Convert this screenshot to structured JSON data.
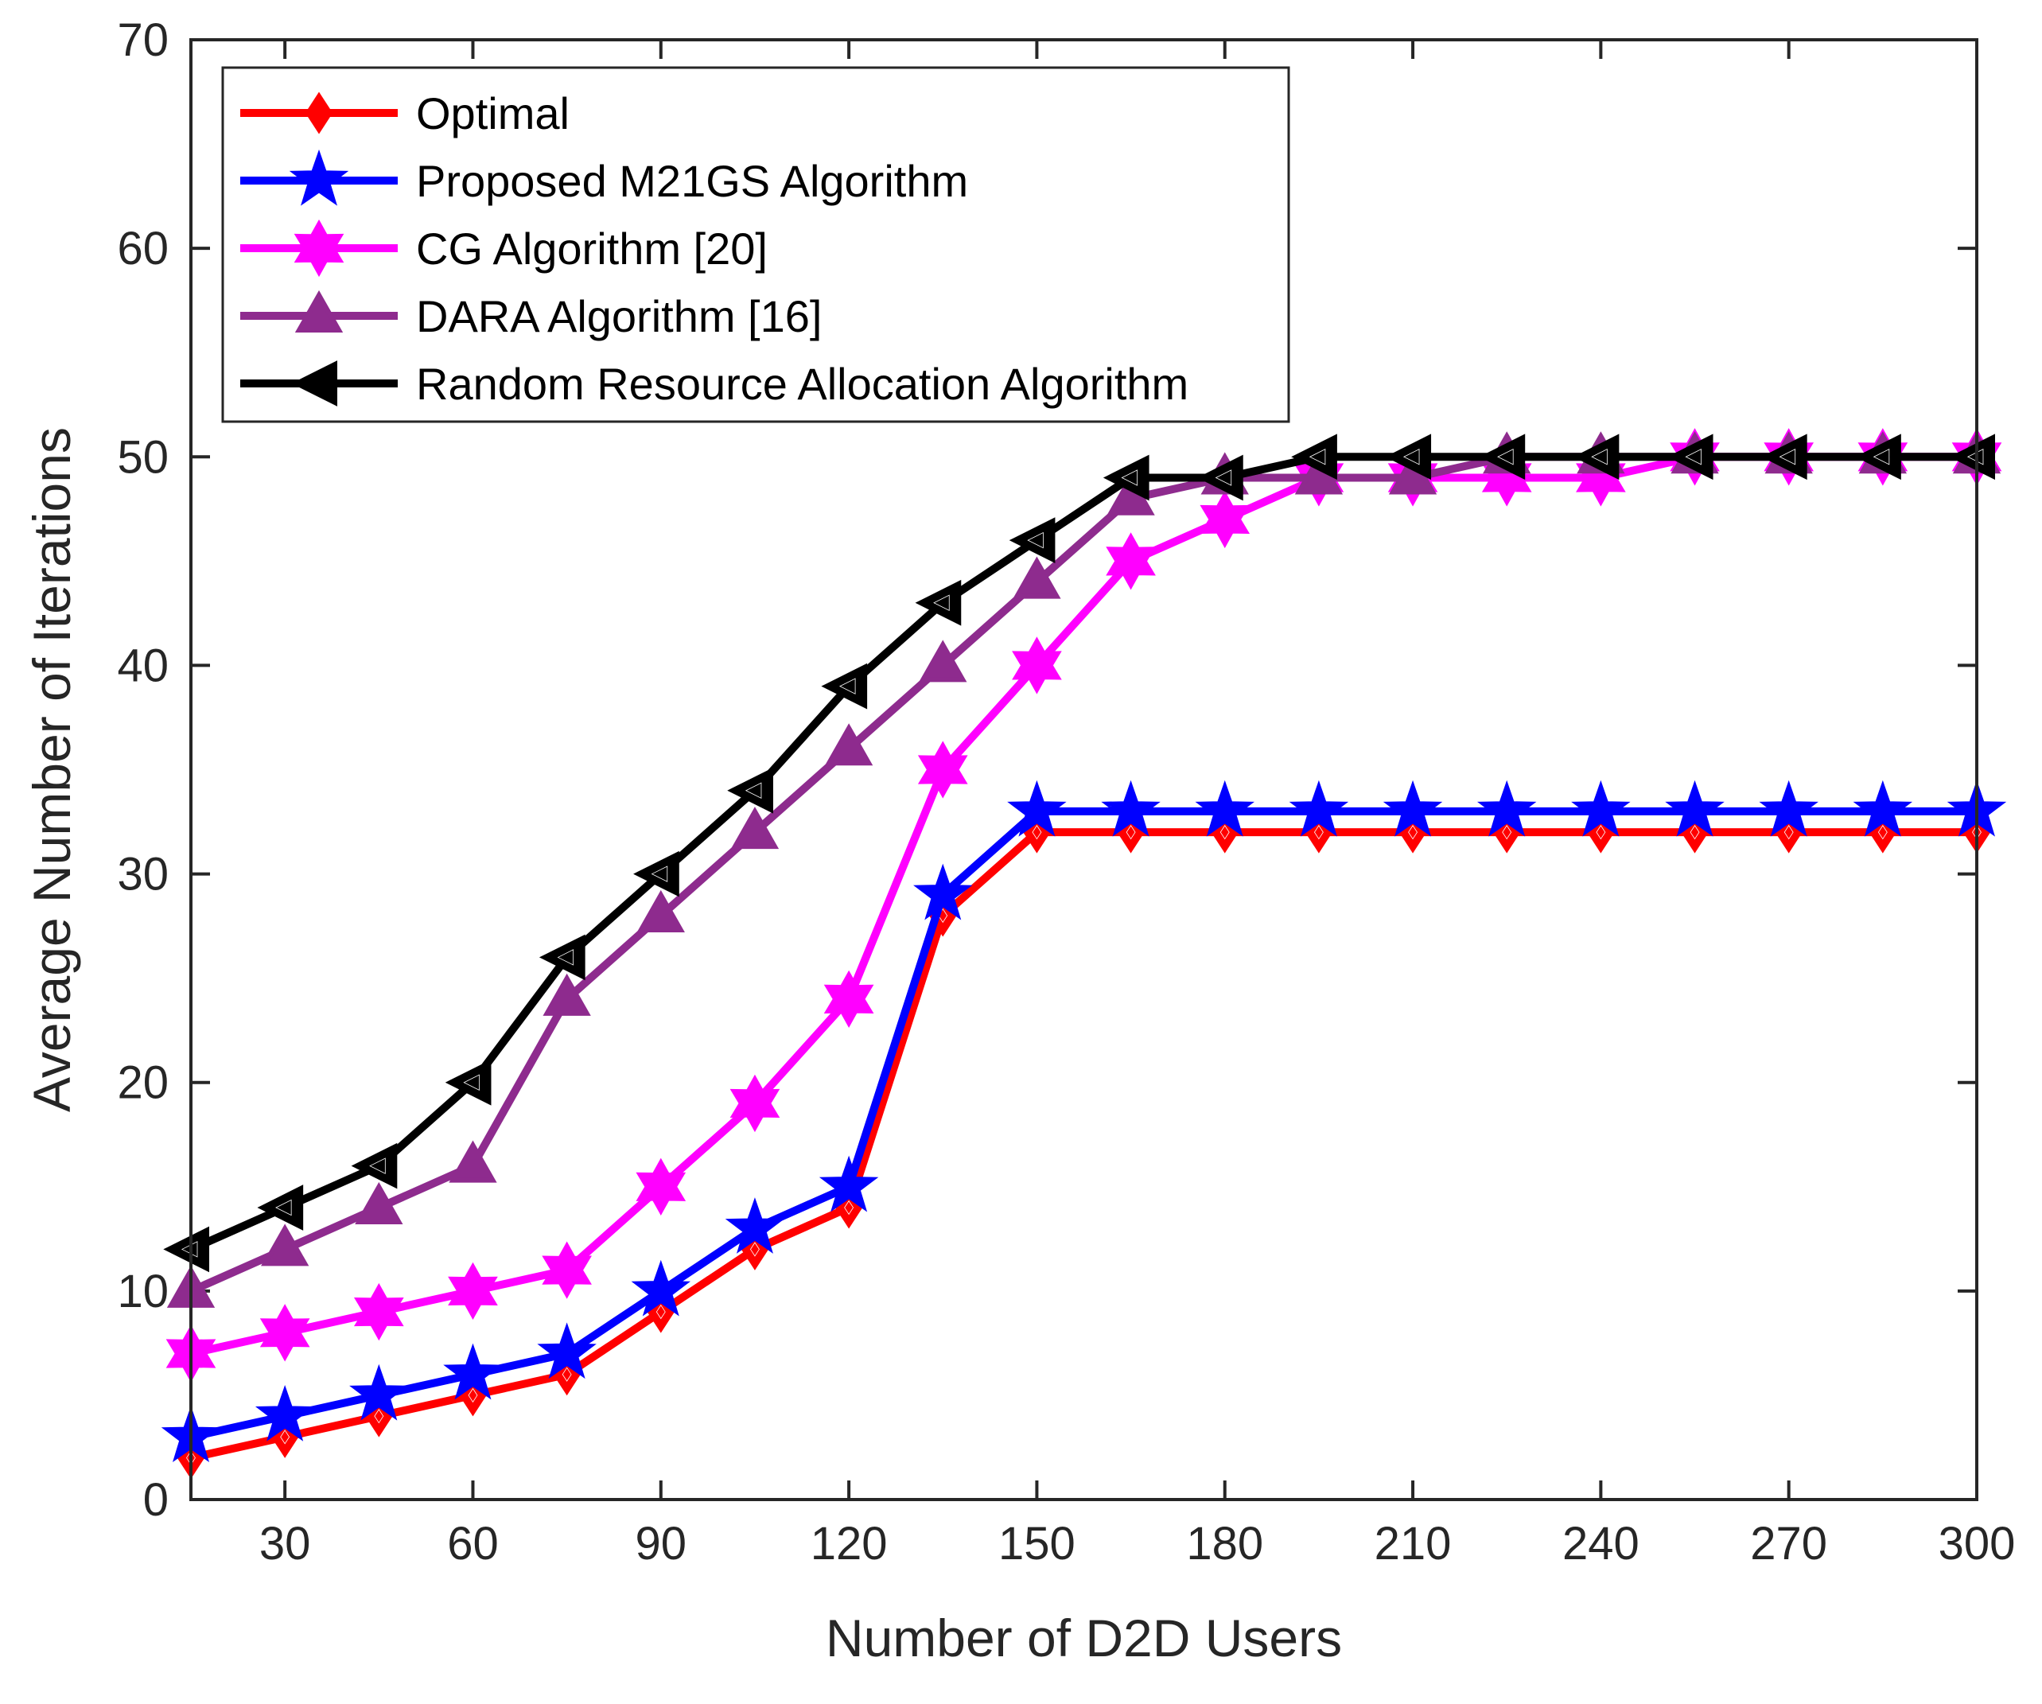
{
  "chart_data": {
    "type": "line",
    "title": "",
    "xlabel": "Number of D2D Users",
    "ylabel": "Average Number of Iterations",
    "xlim": [
      15,
      300
    ],
    "ylim": [
      0,
      70
    ],
    "xticks": [
      30,
      60,
      90,
      120,
      150,
      180,
      210,
      240,
      270,
      300
    ],
    "yticks": [
      0,
      10,
      20,
      30,
      40,
      50,
      60,
      70
    ],
    "grid": false,
    "legend_position": "top-left",
    "x": [
      15,
      30,
      45,
      60,
      75,
      90,
      105,
      120,
      135,
      150,
      165,
      180,
      195,
      210,
      225,
      240,
      255,
      270,
      285,
      300
    ],
    "series": [
      {
        "name": "Optimal",
        "color": "#ff0000",
        "marker": "diamond",
        "values": [
          2,
          3,
          4,
          5,
          6,
          9,
          12,
          14,
          28,
          32,
          32,
          32,
          32,
          32,
          32,
          32,
          32,
          32,
          32,
          32
        ]
      },
      {
        "name": "Proposed M21GS Algorithm",
        "color": "#0000ff",
        "marker": "star",
        "values": [
          3,
          4,
          5,
          6,
          7,
          10,
          13,
          15,
          29,
          33,
          33,
          33,
          33,
          33,
          33,
          33,
          33,
          33,
          33,
          33
        ]
      },
      {
        "name": "CG Algorithm [20]",
        "color": "#ff00ff",
        "marker": "hexagram",
        "values": [
          7,
          8,
          9,
          10,
          11,
          15,
          19,
          24,
          35,
          40,
          45,
          47,
          49,
          49,
          49,
          49,
          50,
          50,
          50,
          50
        ]
      },
      {
        "name": "DARA Algorithm [16]",
        "color": "#8e2b8e",
        "marker": "triangle-up",
        "values": [
          10,
          12,
          14,
          16,
          24,
          28,
          32,
          36,
          40,
          44,
          48,
          49,
          49,
          49,
          50,
          50,
          50,
          50,
          50,
          50
        ]
      },
      {
        "name": "Random Resource Allocation Algorithm",
        "color": "#000000",
        "marker": "triangle-left",
        "values": [
          12,
          14,
          16,
          20,
          26,
          30,
          34,
          39,
          43,
          46,
          49,
          49,
          50,
          50,
          50,
          50,
          50,
          50,
          50,
          50
        ]
      }
    ]
  }
}
